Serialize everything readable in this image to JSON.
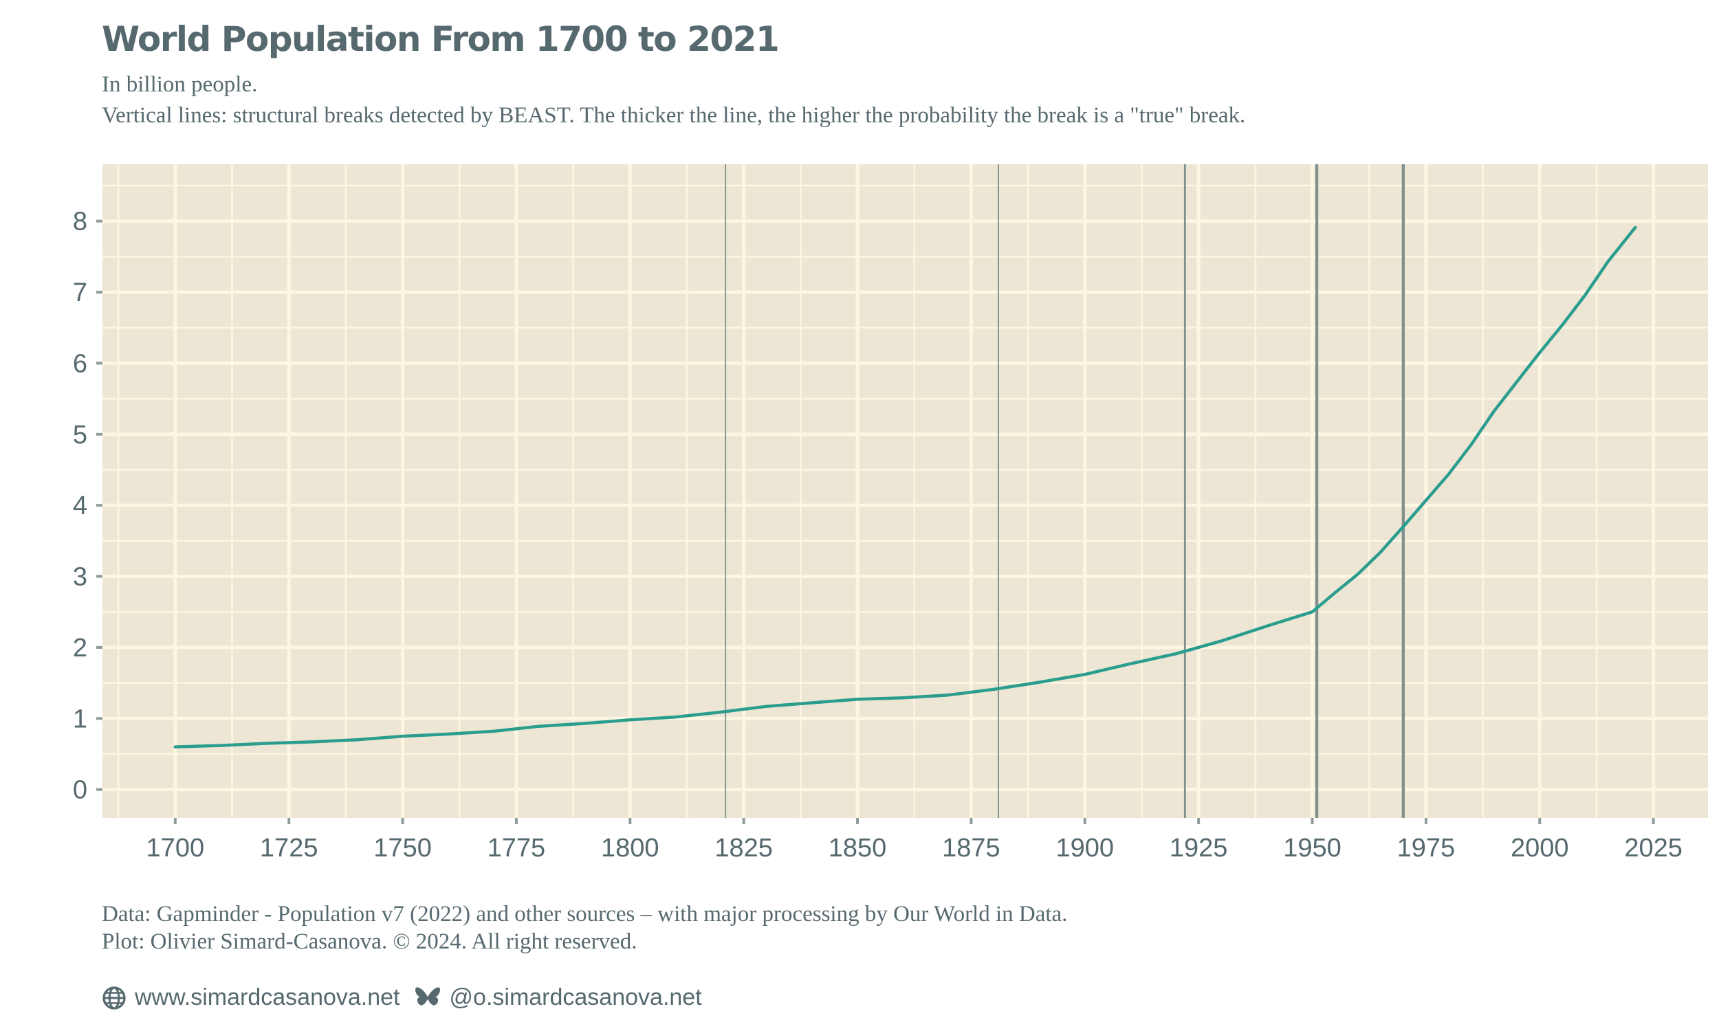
{
  "chart_data": {
    "type": "line",
    "title": "World Population From 1700 to 2021",
    "subtitle": [
      "In billion people.",
      "Vertical lines: structural breaks detected by BEAST. The thicker the line, the higher the probability the break is a \"true\" break."
    ],
    "xlabel": "",
    "ylabel": "",
    "xlim": [
      1684,
      2037
    ],
    "ylim": [
      -0.4,
      8.8
    ],
    "x_ticks": [
      "1700",
      "1725",
      "1750",
      "1775",
      "1800",
      "1825",
      "1850",
      "1875",
      "1900",
      "1925",
      "1950",
      "1975",
      "2000",
      "2025"
    ],
    "y_ticks": [
      "0",
      "1",
      "2",
      "3",
      "4",
      "5",
      "6",
      "7",
      "8"
    ],
    "grid": true,
    "series": [
      {
        "color": "#2A9D8F",
        "x": [
          1700,
          1710,
          1720,
          1730,
          1740,
          1750,
          1760,
          1770,
          1780,
          1790,
          1800,
          1810,
          1820,
          1830,
          1840,
          1850,
          1860,
          1870,
          1880,
          1890,
          1900,
          1910,
          1920,
          1930,
          1940,
          1950,
          1955,
          1960,
          1965,
          1970,
          1975,
          1980,
          1985,
          1990,
          1995,
          2000,
          2005,
          2010,
          2015,
          2021
        ],
        "y": [
          0.6,
          0.62,
          0.65,
          0.67,
          0.7,
          0.75,
          0.78,
          0.82,
          0.89,
          0.93,
          0.98,
          1.02,
          1.09,
          1.17,
          1.22,
          1.27,
          1.29,
          1.33,
          1.41,
          1.51,
          1.62,
          1.77,
          1.91,
          2.09,
          2.3,
          2.5,
          2.77,
          3.03,
          3.34,
          3.7,
          4.07,
          4.44,
          4.86,
          5.33,
          5.74,
          6.15,
          6.54,
          6.96,
          7.43,
          7.91
        ]
      }
    ],
    "breaks": [
      {
        "year": 1821,
        "strength": 0.2
      },
      {
        "year": 1881,
        "strength": 0.2
      },
      {
        "year": 1922,
        "strength": 0.45
      },
      {
        "year": 1951,
        "strength": 0.8
      },
      {
        "year": 1970,
        "strength": 0.8
      }
    ],
    "colors": {
      "panel": "#EEE6D4",
      "grid": "#FDF6E3",
      "text": "#56696F",
      "line": "#2A9D8F",
      "breaks": "#7E8F8C"
    }
  },
  "caption": {
    "data": "Data: Gapminder - Population v7 (2022) and other sources – with major processing by Our World in Data.",
    "plot": "Plot: Olivier Simard-Casanova. © 2024.  All right reserved."
  },
  "links": {
    "website": "www.simardcasanova.net",
    "website_icon": "globe-icon",
    "bluesky": "@o.simardcasanova.net",
    "bluesky_icon": "butterfly-icon"
  }
}
